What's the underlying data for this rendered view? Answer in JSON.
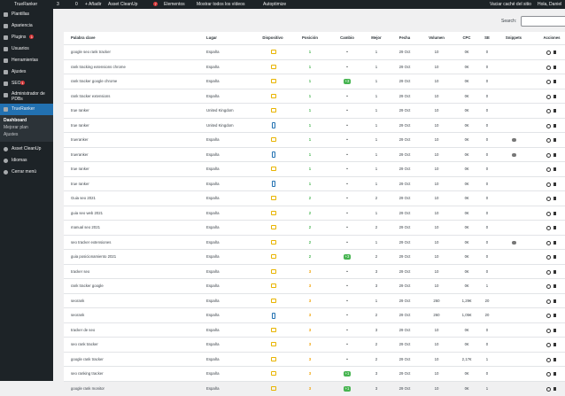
{
  "admin_bar": {
    "site": "TrueRanker",
    "updates": "3",
    "comments": "0",
    "add_new": "+ Añadir",
    "asset_cleanup": "Asset CleanUp",
    "badge": "7",
    "elements": "Elementos",
    "videos": "Mostrar todos los vídeos",
    "autoptimize": "Autoptimize",
    "clear_cache": "Vaciar caché del sitio",
    "greeting": "Hola, Daniel"
  },
  "sidebar": {
    "items": [
      {
        "label": "Plantillas"
      },
      {
        "label": "Apariencia"
      },
      {
        "label": "Plugins",
        "badge": "1"
      },
      {
        "label": "Usuarios"
      },
      {
        "label": "Herramientas"
      },
      {
        "label": "Ajustes"
      },
      {
        "label": "SEO",
        "badge": "1"
      },
      {
        "label": "Administrador de PDBs"
      },
      {
        "label": "TrueRanker",
        "active": true
      }
    ],
    "submenu": [
      "Dashboard",
      "Mejorar plan",
      "Ajustes"
    ],
    "bottom": [
      "Asset CleanUp",
      "Idiomas",
      "Cerrar menú"
    ]
  },
  "search_label": "Search:",
  "table": {
    "headers": [
      "Palabra clave",
      "Lugar",
      "Dispositivo",
      "Posición",
      "Cambio",
      "Mejor",
      "Fecha",
      "Volumen",
      "CPC",
      "SE",
      "Snippets",
      "Acciones"
    ],
    "rows": [
      {
        "keyword": "google seo rank tracker",
        "location": "España",
        "device": "desktop",
        "position": 1,
        "change": "•",
        "best": 1,
        "date": "29 Oct",
        "volume": 10,
        "cpc": "0€",
        "se": 0,
        "snippet": false
      },
      {
        "keyword": "rank tracking extensions chrome",
        "location": "España",
        "device": "desktop",
        "position": 1,
        "change": "•",
        "best": 1,
        "date": "29 Oct",
        "volume": 10,
        "cpc": "0€",
        "se": 0,
        "snippet": false
      },
      {
        "keyword": "rank tracker google chrome",
        "location": "España",
        "device": "desktop",
        "position": 1,
        "change": "+3",
        "best": 1,
        "date": "29 Oct",
        "volume": 10,
        "cpc": "0€",
        "se": 0,
        "snippet": false
      },
      {
        "keyword": "rank tracker extensions",
        "location": "España",
        "device": "desktop",
        "position": 1,
        "change": "•",
        "best": 1,
        "date": "29 Oct",
        "volume": 10,
        "cpc": "0€",
        "se": 0,
        "snippet": false
      },
      {
        "keyword": "true ranker",
        "location": "United Kingdom",
        "device": "desktop",
        "position": 1,
        "change": "•",
        "best": 1,
        "date": "29 Oct",
        "volume": 10,
        "cpc": "0€",
        "se": 0,
        "snippet": false
      },
      {
        "keyword": "true ranker",
        "location": "United Kingdom",
        "device": "mobile",
        "position": 1,
        "change": "•",
        "best": 1,
        "date": "29 Oct",
        "volume": 10,
        "cpc": "0€",
        "se": 0,
        "snippet": false
      },
      {
        "keyword": "trueranker",
        "location": "España",
        "device": "desktop",
        "position": 1,
        "change": "•",
        "best": 1,
        "date": "29 Oct",
        "volume": 10,
        "cpc": "0€",
        "se": 0,
        "snippet": true
      },
      {
        "keyword": "trueranker",
        "location": "España",
        "device": "mobile",
        "position": 1,
        "change": "•",
        "best": 1,
        "date": "29 Oct",
        "volume": 10,
        "cpc": "0€",
        "se": 0,
        "snippet": true
      },
      {
        "keyword": "true ranker",
        "location": "España",
        "device": "desktop",
        "position": 1,
        "change": "•",
        "best": 1,
        "date": "29 Oct",
        "volume": 10,
        "cpc": "0€",
        "se": 0,
        "snippet": false
      },
      {
        "keyword": "true ranker",
        "location": "España",
        "device": "mobile",
        "position": 1,
        "change": "•",
        "best": 1,
        "date": "29 Oct",
        "volume": 10,
        "cpc": "0€",
        "se": 0,
        "snippet": false
      },
      {
        "keyword": "Guia seo 2021",
        "location": "España",
        "device": "desktop",
        "position": 2,
        "change": "•",
        "best": 2,
        "date": "29 Oct",
        "volume": 10,
        "cpc": "0€",
        "se": 0,
        "snippet": false
      },
      {
        "keyword": "guia seo web 2021",
        "location": "España",
        "device": "desktop",
        "position": 2,
        "change": "•",
        "best": 1,
        "date": "29 Oct",
        "volume": 10,
        "cpc": "0€",
        "se": 0,
        "snippet": false
      },
      {
        "keyword": "manual seo 2021",
        "location": "España",
        "device": "desktop",
        "position": 2,
        "change": "•",
        "best": 2,
        "date": "29 Oct",
        "volume": 10,
        "cpc": "0€",
        "se": 0,
        "snippet": false
      },
      {
        "keyword": "seo tracker extensiones",
        "location": "España",
        "device": "desktop",
        "position": 2,
        "change": "•",
        "best": 1,
        "date": "29 Oct",
        "volume": 10,
        "cpc": "0€",
        "se": 0,
        "snippet": true
      },
      {
        "keyword": "guia posicionamiento 2021",
        "location": "España",
        "device": "desktop",
        "position": 2,
        "change": "+3",
        "best": 2,
        "date": "29 Oct",
        "volume": 10,
        "cpc": "0€",
        "se": 0,
        "snippet": false
      },
      {
        "keyword": "tracker seo",
        "location": "España",
        "device": "desktop",
        "position": 3,
        "change": "•",
        "best": 3,
        "date": "29 Oct",
        "volume": 10,
        "cpc": "0€",
        "se": 0,
        "snippet": false
      },
      {
        "keyword": "rank tracker google",
        "location": "España",
        "device": "desktop",
        "position": 3,
        "change": "•",
        "best": 3,
        "date": "29 Oct",
        "volume": 10,
        "cpc": "0€",
        "se": 1,
        "snippet": false
      },
      {
        "keyword": "seorank",
        "location": "España",
        "device": "desktop",
        "position": 3,
        "change": "•",
        "best": 1,
        "date": "29 Oct",
        "volume": 260,
        "cpc": "1,29€",
        "se": 20,
        "snippet": false
      },
      {
        "keyword": "seorank",
        "location": "España",
        "device": "mobile",
        "position": 3,
        "change": "•",
        "best": 2,
        "date": "29 Oct",
        "volume": 260,
        "cpc": "1,05€",
        "se": 20,
        "snippet": false
      },
      {
        "keyword": "tracker de seo",
        "location": "España",
        "device": "desktop",
        "position": 3,
        "change": "•",
        "best": 3,
        "date": "29 Oct",
        "volume": 10,
        "cpc": "0€",
        "se": 0,
        "snippet": false
      },
      {
        "keyword": "seo rank tracker",
        "location": "España",
        "device": "desktop",
        "position": 3,
        "change": "•",
        "best": 2,
        "date": "29 Oct",
        "volume": 10,
        "cpc": "0€",
        "se": 0,
        "snippet": false
      },
      {
        "keyword": "google rank tracker",
        "location": "España",
        "device": "desktop",
        "position": 3,
        "change": "•",
        "best": 2,
        "date": "29 Oct",
        "volume": 10,
        "cpc": "2,17€",
        "se": 1,
        "snippet": false
      },
      {
        "keyword": "seo ranking tracker",
        "location": "España",
        "device": "desktop",
        "position": 3,
        "change": "+1",
        "best": 3,
        "date": "29 Oct",
        "volume": 10,
        "cpc": "0€",
        "se": 0,
        "snippet": false
      },
      {
        "keyword": "google rank monitor",
        "location": "España",
        "device": "desktop",
        "position": 3,
        "change": "+1",
        "best": 3,
        "date": "29 Oct",
        "volume": 10,
        "cpc": "0€",
        "se": 1,
        "snippet": false
      }
    ]
  }
}
